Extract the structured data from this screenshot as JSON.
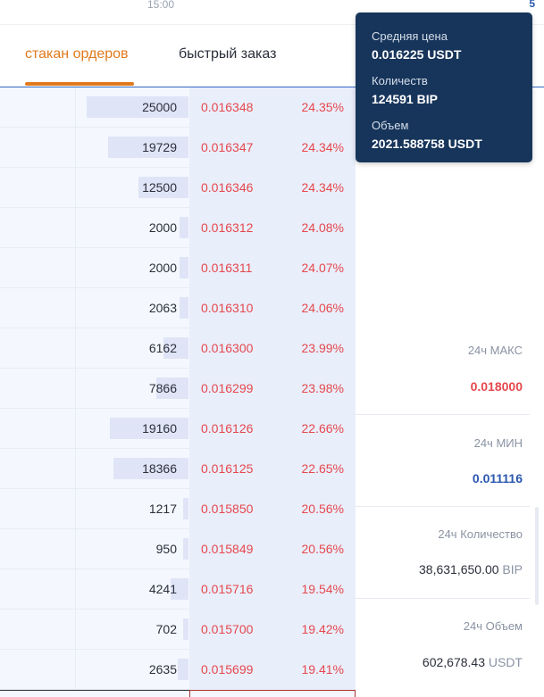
{
  "top": {
    "time": "15:00",
    "right_number": "5"
  },
  "tabs": [
    {
      "label": "стакан ордеров",
      "active": true
    },
    {
      "label": "быстрый заказ",
      "active": false
    }
  ],
  "orderbook": {
    "rows": [
      {
        "qty": "25000",
        "price": "0.016348",
        "pct": "24.35%",
        "depth": 0.57
      },
      {
        "qty": "19729",
        "price": "0.016347",
        "pct": "24.34%",
        "depth": 0.45
      },
      {
        "qty": "12500",
        "price": "0.016346",
        "pct": "24.34%",
        "depth": 0.28
      },
      {
        "qty": "2000",
        "price": "0.016312",
        "pct": "24.08%",
        "depth": 0.05
      },
      {
        "qty": "2000",
        "price": "0.016311",
        "pct": "24.07%",
        "depth": 0.05
      },
      {
        "qty": "2063",
        "price": "0.016310",
        "pct": "24.06%",
        "depth": 0.05
      },
      {
        "qty": "6162",
        "price": "0.016300",
        "pct": "23.99%",
        "depth": 0.14
      },
      {
        "qty": "7866",
        "price": "0.016299",
        "pct": "23.98%",
        "depth": 0.18
      },
      {
        "qty": "19160",
        "price": "0.016126",
        "pct": "22.66%",
        "depth": 0.44
      },
      {
        "qty": "18366",
        "price": "0.016125",
        "pct": "22.65%",
        "depth": 0.42
      },
      {
        "qty": "1217",
        "price": "0.015850",
        "pct": "20.56%",
        "depth": 0.03
      },
      {
        "qty": "950",
        "price": "0.015849",
        "pct": "20.56%",
        "depth": 0.03
      },
      {
        "qty": "4241",
        "price": "0.015716",
        "pct": "19.54%",
        "depth": 0.1
      },
      {
        "qty": "702",
        "price": "0.015700",
        "pct": "19.42%",
        "depth": 0.02
      },
      {
        "qty": "2635",
        "price": "0.015699",
        "pct": "19.41%",
        "depth": 0.06
      }
    ]
  },
  "stats": {
    "high_label": "24ч МАКС",
    "high_value": "0.018000",
    "low_label": "24ч МИН",
    "low_value": "0.011116",
    "volume_qty_label": "24ч Количество",
    "volume_qty_value": "38,631,650.00",
    "volume_qty_unit": "BIP",
    "volume_label": "24ч Объем",
    "volume_value": "602,678.43",
    "volume_unit": "USDT"
  },
  "tooltip": {
    "avg_price_label": "Средняя цена",
    "avg_price_value": "0.016225 USDT",
    "qty_label": "Количеств",
    "qty_value": "124591 BIP",
    "volume_label": "Объем",
    "volume_value": "2021.588758 USDT"
  },
  "colors": {
    "accent": "#e07a1c",
    "ask": "#e5484d",
    "bid_blue": "#2a57b0",
    "tooltip_bg": "#17355b"
  }
}
